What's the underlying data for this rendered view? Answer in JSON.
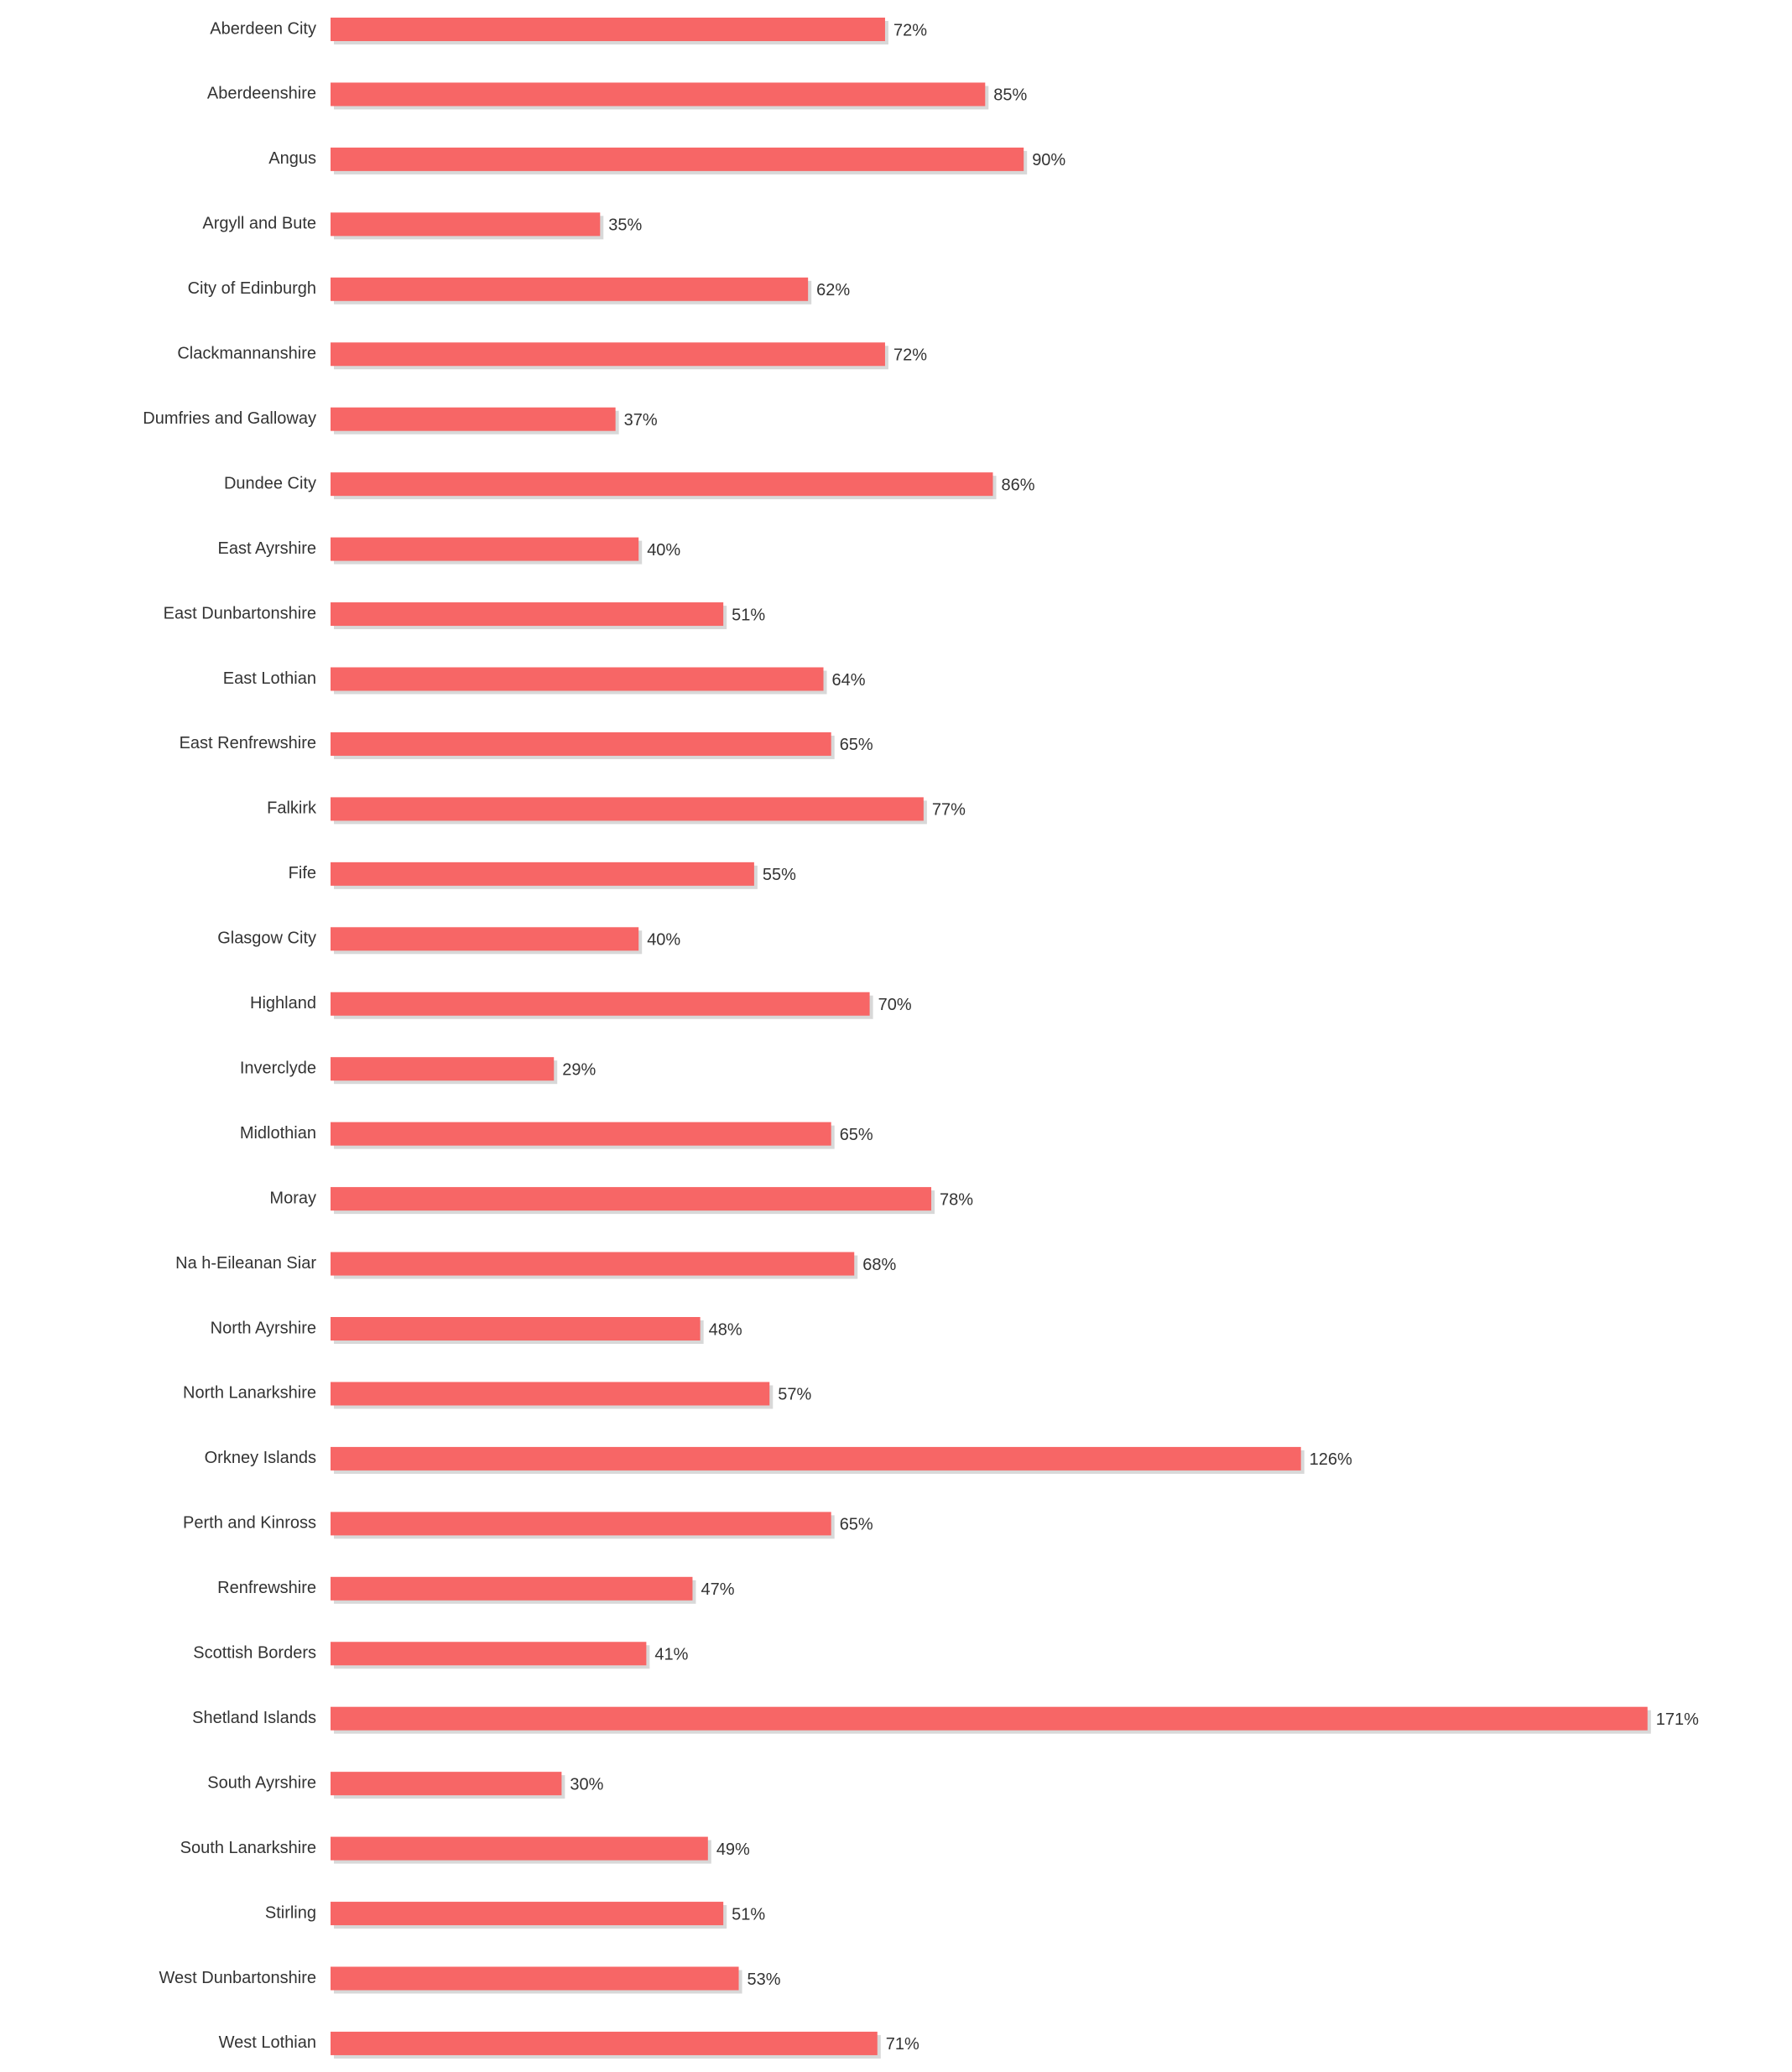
{
  "colors": {
    "bar": "#f76666",
    "bar_shadow": "#b8b8b8",
    "label": "#333333",
    "background": "#ffffff"
  },
  "chart_data": {
    "type": "bar",
    "orientation": "horizontal",
    "title": "",
    "xlabel": "",
    "ylabel": "",
    "grid": false,
    "xlim": [
      0,
      180
    ],
    "value_suffix": "%",
    "categories": [
      "Aberdeen City",
      "Aberdeenshire",
      "Angus",
      "Argyll and Bute",
      "City of Edinburgh",
      "Clackmannanshire",
      "Dumfries and Galloway",
      "Dundee City",
      "East Ayrshire",
      "East Dunbartonshire",
      "East Lothian",
      "East Renfrewshire",
      "Falkirk",
      "Fife",
      "Glasgow City",
      "Highland",
      "Inverclyde",
      "Midlothian",
      "Moray",
      "Na h-Eileanan Siar",
      "North Ayrshire",
      "North Lanarkshire",
      "Orkney Islands",
      "Perth and Kinross",
      "Renfrewshire",
      "Scottish Borders",
      "Shetland Islands",
      "South Ayrshire",
      "South Lanarkshire",
      "Stirling",
      "West Dunbartonshire",
      "West Lothian"
    ],
    "values": [
      72,
      85,
      90,
      35,
      62,
      72,
      37,
      86,
      40,
      51,
      64,
      65,
      77,
      55,
      40,
      70,
      29,
      65,
      78,
      68,
      48,
      57,
      126,
      65,
      47,
      41,
      171,
      30,
      49,
      51,
      53,
      71
    ],
    "value_labels": [
      "72%",
      "85%",
      "90%",
      "35%",
      "62%",
      "72%",
      "37%",
      "86%",
      "40%",
      "51%",
      "64%",
      "65%",
      "77%",
      "55%",
      "40%",
      "70%",
      "29%",
      "65%",
      "78%",
      "68%",
      "48%",
      "57%",
      "126%",
      "65%",
      "47%",
      "41%",
      "171%",
      "30%",
      "49%",
      "51%",
      "53%",
      "71%"
    ]
  }
}
